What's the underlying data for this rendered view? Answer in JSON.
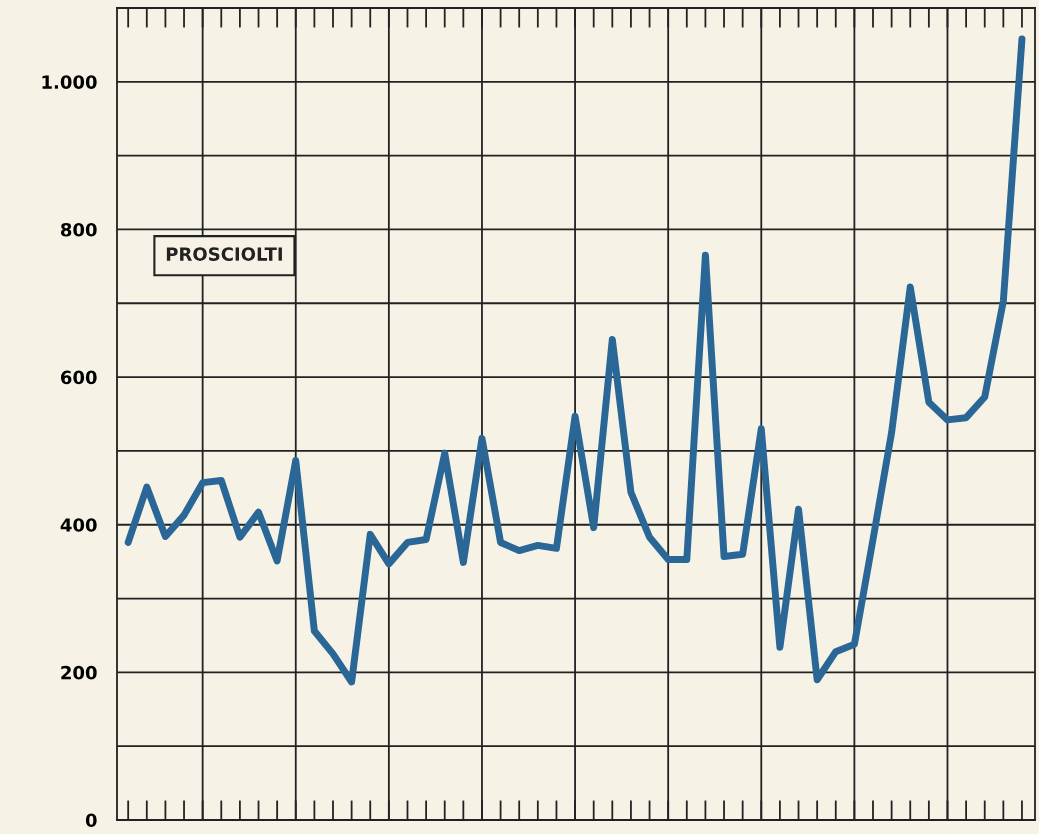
{
  "chart_data": {
    "type": "line",
    "categories": [
      null,
      null,
      null,
      null,
      null,
      null,
      null,
      null,
      null,
      null,
      null,
      null,
      null,
      null,
      null,
      null,
      null,
      null,
      null,
      null,
      null,
      null,
      null,
      null,
      null,
      null,
      null,
      null,
      null,
      null,
      null,
      null,
      null,
      null,
      null,
      null,
      null,
      null,
      null,
      null,
      null,
      null,
      null,
      null,
      null,
      null,
      null,
      null,
      null
    ],
    "series": [
      {
        "color": "#2b6796",
        "values": [
          376,
          451,
          384,
          413,
          457,
          460,
          383,
          417,
          351,
          487,
          256,
          225,
          187,
          387,
          347,
          376,
          380,
          497,
          349,
          517,
          376,
          365,
          372,
          368,
          547,
          396,
          651,
          444,
          383,
          353,
          353,
          765,
          357,
          360,
          530,
          234,
          421,
          190,
          228,
          238,
          380,
          525,
          722,
          566,
          542,
          545,
          573,
          703,
          1058
        ]
      }
    ],
    "ylim": [
      0,
      1100
    ],
    "yticks": [
      0,
      {
        "value": 100,
        "label": null
      },
      200,
      {
        "value": 300,
        "label": null
      },
      400,
      {
        "value": 500,
        "label": null
      },
      600,
      {
        "value": 700,
        "label": null
      },
      800,
      {
        "value": 900,
        "label": null
      },
      {
        "value": 1000,
        "label": "1.000"
      }
    ],
    "grid": true,
    "annotations": [
      "PROSCIOLTI"
    ]
  }
}
